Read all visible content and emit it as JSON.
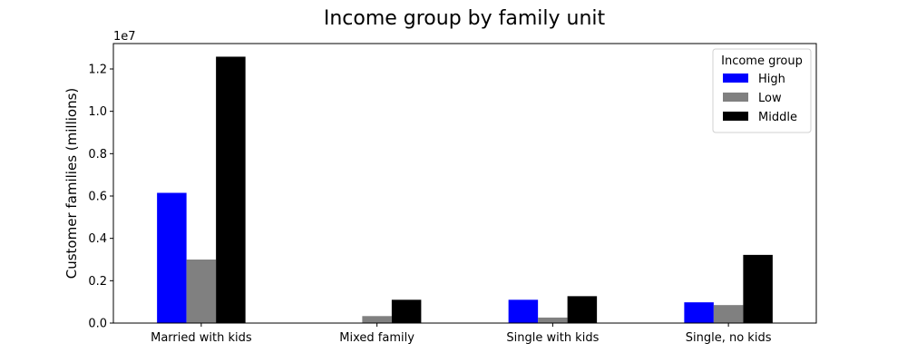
{
  "chart_data": {
    "type": "bar",
    "title": "Income group by family unit",
    "xlabel": "",
    "ylabel": "Customer families (millions)",
    "offset_text": "1e7",
    "categories": [
      "Married with kids",
      "Mixed family",
      "Single with kids",
      "Single, no kids"
    ],
    "series": [
      {
        "name": "High",
        "color": "#0000ff",
        "values": [
          6150000,
          0,
          1100000,
          980000
        ]
      },
      {
        "name": "Low",
        "color": "#808080",
        "values": [
          3000000,
          330000,
          260000,
          850000
        ]
      },
      {
        "name": "Middle",
        "color": "#000000",
        "values": [
          12580000,
          1100000,
          1270000,
          3220000
        ]
      }
    ],
    "ylim": [
      0,
      13200000
    ],
    "yticks": [
      0,
      2000000,
      4000000,
      6000000,
      8000000,
      10000000,
      12000000
    ],
    "ytick_labels": [
      "0.0",
      "0.2",
      "0.4",
      "0.6",
      "0.8",
      "1.0",
      "1.2"
    ],
    "legend": {
      "title": "Income group",
      "placement": "top-right"
    },
    "grid": false
  }
}
